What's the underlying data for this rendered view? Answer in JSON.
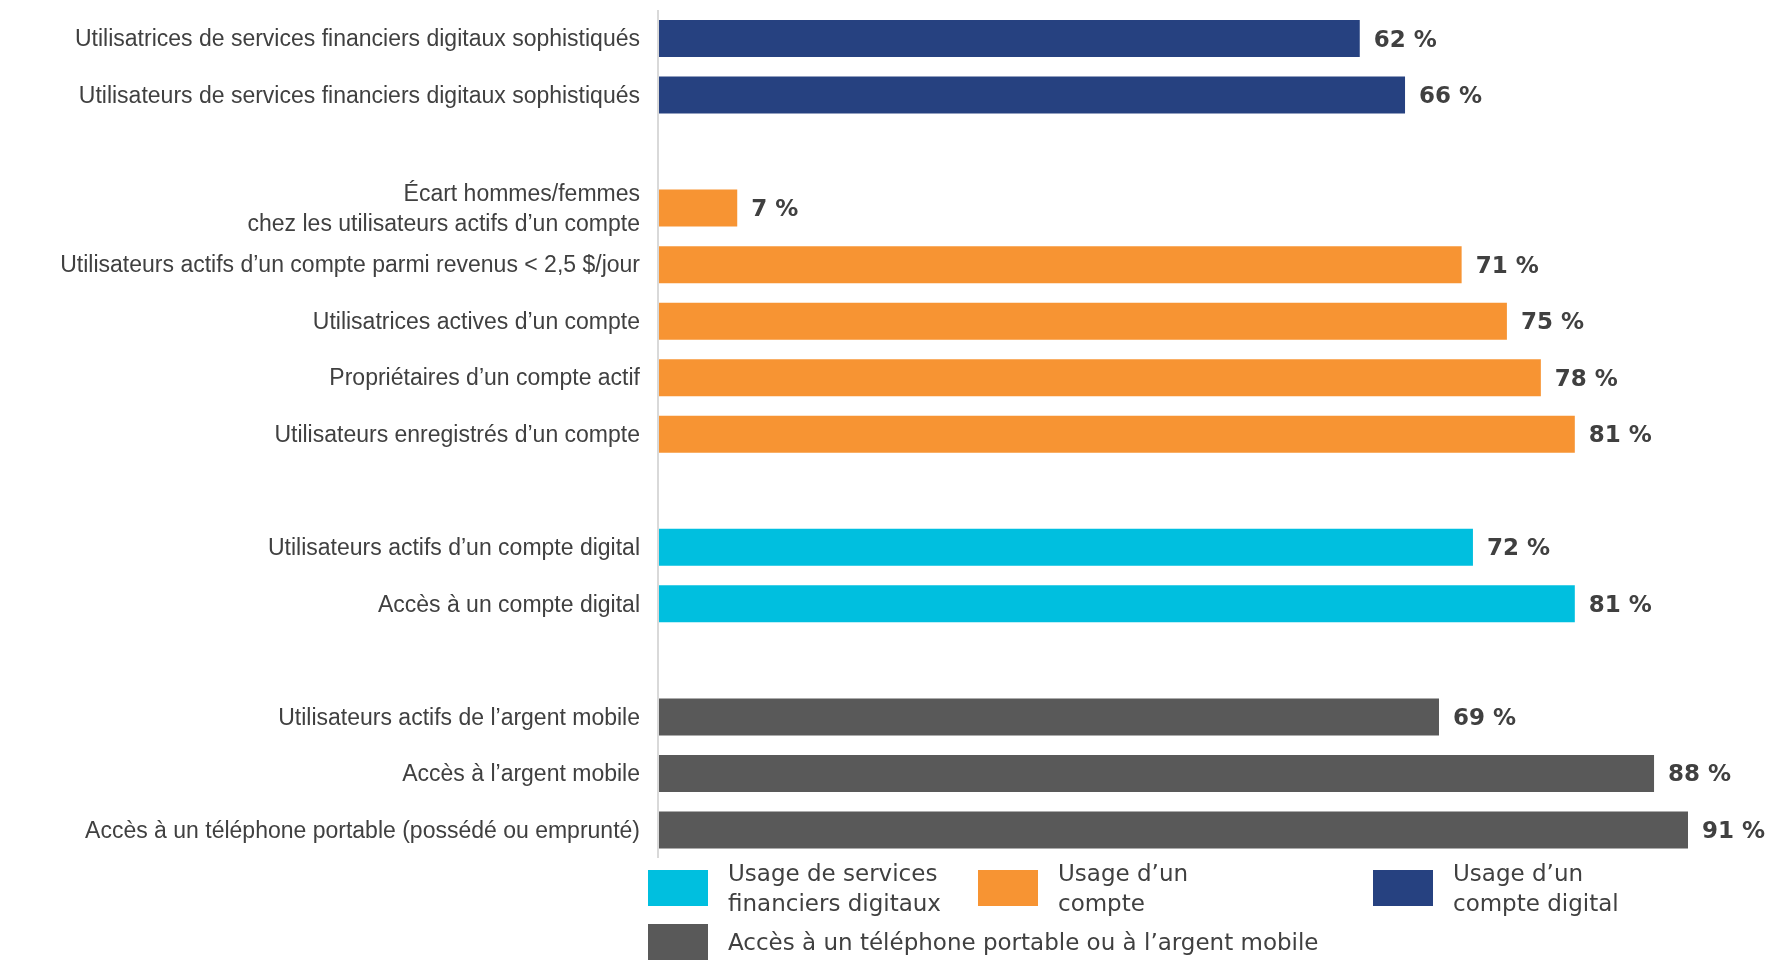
{
  "chart_data": {
    "type": "bar",
    "orientation": "horizontal",
    "stacked": true,
    "categories": [
      "Utilisatrices de services financiers digitaux sophistiqués",
      "Utilisateurs de services financiers digitaux sophistiqués",
      null,
      "Écart hommes/femmes\nchez les utilisateurs actifs d’un compte",
      "Utilisateurs actifs d’un compte parmi revenus < 2,5 $/jour",
      "Utilisatrices actives d’un compte",
      "Propriétaires d’un compte actif",
      "Utilisateurs enregistrés d’un compte",
      null,
      "Utilisateurs actifs d’un compte digital",
      "Accès à un compte digital",
      null,
      "Utilisateurs actifs de l’argent mobile",
      "Accès à l’argent mobile",
      "Accès à un téléphone portable (possédé ou emprunté)"
    ],
    "series": [
      {
        "name": "Usage de services financiers digitaux",
        "color": "#00bfdf",
        "values": [
          null,
          null,
          null,
          null,
          null,
          null,
          null,
          null,
          null,
          72,
          81,
          null,
          null,
          null,
          null
        ],
        "value_labels": [
          null,
          null,
          null,
          null,
          null,
          null,
          null,
          null,
          null,
          "72 %",
          "81 %",
          null,
          null,
          null,
          null
        ]
      },
      {
        "name": "Usage d’un compte",
        "color": "#f79433",
        "values": [
          null,
          null,
          null,
          7,
          71,
          75,
          78,
          81,
          null,
          null,
          null,
          null,
          null,
          null,
          null
        ],
        "value_labels": [
          null,
          null,
          null,
          "7 %",
          "71 %",
          "75 %",
          "78 %",
          "81 %",
          null,
          null,
          null,
          null,
          null,
          null,
          null
        ]
      },
      {
        "name": "Usage d’un compte digital",
        "color": "#264180",
        "values": [
          62,
          66,
          null,
          null,
          null,
          null,
          null,
          null,
          null,
          null,
          null,
          null,
          null,
          null,
          null
        ],
        "value_labels": [
          "62 %",
          "66 %",
          null,
          null,
          null,
          null,
          null,
          null,
          null,
          null,
          null,
          null,
          null,
          null,
          null
        ]
      },
      {
        "name": "Accès à un téléphone portable ou à l’argent mobile",
        "color": "#595959",
        "values": [
          null,
          null,
          null,
          null,
          null,
          null,
          null,
          null,
          null,
          null,
          null,
          null,
          69,
          88,
          91
        ],
        "value_labels": [
          null,
          null,
          null,
          null,
          null,
          null,
          null,
          null,
          null,
          null,
          null,
          null,
          "69 %",
          "88 %",
          "91 %"
        ]
      }
    ],
    "legend": "bottom",
    "grid": false
  }
}
